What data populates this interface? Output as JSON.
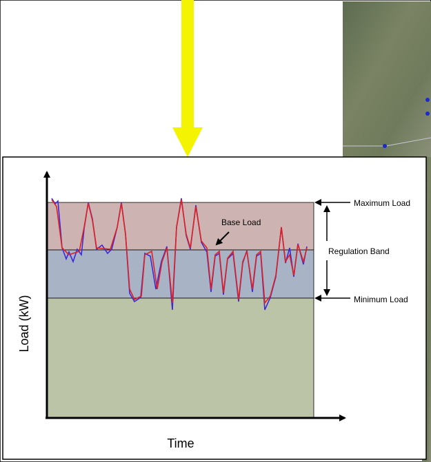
{
  "diagram": {
    "y_axis_label": "Load (kW)",
    "x_axis_label": "Time",
    "annotations": {
      "maximum_load": "Maximum Load",
      "base_load": "Base Load",
      "regulation_band": "Regulation Band",
      "minimum_load": "Minimum Load"
    }
  }
}
